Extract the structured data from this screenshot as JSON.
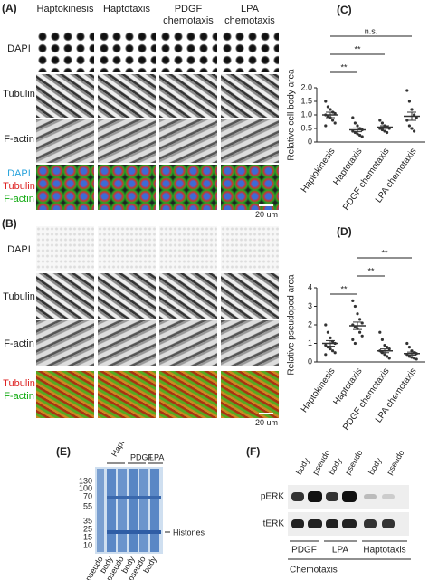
{
  "panel_a": {
    "label": "(A)",
    "columns": [
      "Haptokinesis",
      "Haptotaxis",
      "PDGF chemotaxis",
      "LPA chemotaxis"
    ],
    "rows": [
      "DAPI",
      "Tubulin",
      "F-actin"
    ],
    "merge_labels": [
      "DAPI",
      "Tubulin",
      "F-actin"
    ],
    "scale_bar": "20 um"
  },
  "panel_b": {
    "label": "(B)",
    "rows": [
      "DAPI",
      "Tubulin",
      "F-actin"
    ],
    "merge_labels": [
      "Tubulin",
      "F-actin"
    ],
    "scale_bar": "20 um"
  },
  "chart_data": [
    {
      "type": "dotplot",
      "label": "(C)",
      "ylabel": "Relative cell body area",
      "categories": [
        "Haptokinesis",
        "Haptotaxis",
        "PDGF chemotaxis",
        "LPA chemotaxis"
      ],
      "points": [
        [
          1.5,
          1.3,
          1.2,
          1.1,
          1.05,
          1.0,
          0.95,
          0.9,
          0.8,
          0.7,
          0.6
        ],
        [
          0.9,
          0.7,
          0.6,
          0.5,
          0.45,
          0.4,
          0.35,
          0.3,
          0.25,
          0.2
        ],
        [
          0.8,
          0.7,
          0.6,
          0.55,
          0.5,
          0.5,
          0.45,
          0.4,
          0.35
        ],
        [
          1.9,
          1.5,
          1.2,
          1.0,
          0.9,
          0.8,
          0.6,
          0.5,
          0.4
        ]
      ],
      "means": [
        1.0,
        0.45,
        0.55,
        0.95
      ],
      "errors": [
        0.1,
        0.07,
        0.05,
        0.15
      ],
      "color": "#333333",
      "ylim": [
        0,
        2
      ],
      "yticks": [
        0,
        0.5,
        {
          "value": 1,
          "label": "1.0"
        },
        1.5,
        {
          "value": 2,
          "label": "2.0"
        }
      ],
      "brackets": [
        {
          "label": "**",
          "between": [
            0,
            1
          ]
        },
        {
          "label": "**",
          "between": [
            0,
            2
          ]
        },
        {
          "label": "n.s.",
          "between": [
            0,
            3
          ]
        }
      ]
    },
    {
      "type": "dotplot",
      "label": "(D)",
      "ylabel": "Relative pseudopod area",
      "categories": [
        "Haptokinesis",
        "Haptotaxis",
        "PDGF chemotaxis",
        "LPA chemotaxis"
      ],
      "points": [
        [
          2.0,
          1.6,
          1.3,
          1.1,
          1.0,
          0.9,
          0.8,
          0.7,
          0.6,
          0.5,
          0.4
        ],
        [
          3.3,
          3.0,
          2.6,
          2.3,
          2.1,
          2.0,
          1.9,
          1.8,
          1.6,
          1.4,
          1.2,
          1.0
        ],
        [
          1.6,
          1.2,
          0.9,
          0.8,
          0.7,
          0.6,
          0.5,
          0.4,
          0.3,
          0.2
        ],
        [
          1.0,
          0.8,
          0.6,
          0.5,
          0.45,
          0.4,
          0.3,
          0.25,
          0.2,
          0.15
        ]
      ],
      "means": [
        1.0,
        1.95,
        0.6,
        0.45
      ],
      "errors": [
        0.15,
        0.2,
        0.1,
        0.08
      ],
      "color": "#333333",
      "ylim": [
        0,
        4
      ],
      "yticks": [
        0,
        1,
        2,
        3,
        4
      ],
      "brackets": [
        {
          "label": "**",
          "between": [
            0,
            1
          ]
        },
        {
          "label": "**",
          "between": [
            1,
            2
          ]
        },
        {
          "label": "**",
          "between": [
            1,
            3
          ]
        }
      ]
    }
  ],
  "panel_e": {
    "label": "(E)",
    "groups": [
      "Haptotaxis",
      "PDGF",
      "LPA"
    ],
    "markers": [
      "130",
      "100",
      "70",
      "55",
      "35",
      "25",
      "15",
      "10"
    ],
    "lanes": [
      "pseudo",
      "body",
      "pseudo",
      "body",
      "pseudo",
      "body"
    ],
    "annotation": "Histones"
  },
  "panel_f": {
    "label": "(F)",
    "lanes": [
      "body",
      "pseudo",
      "body",
      "pseudo",
      "body",
      "pseudo"
    ],
    "rows": [
      "pERK",
      "tERK"
    ],
    "groups": [
      "PDGF",
      "LPA",
      "Haptotaxis"
    ],
    "footer": "Chemotaxis"
  }
}
